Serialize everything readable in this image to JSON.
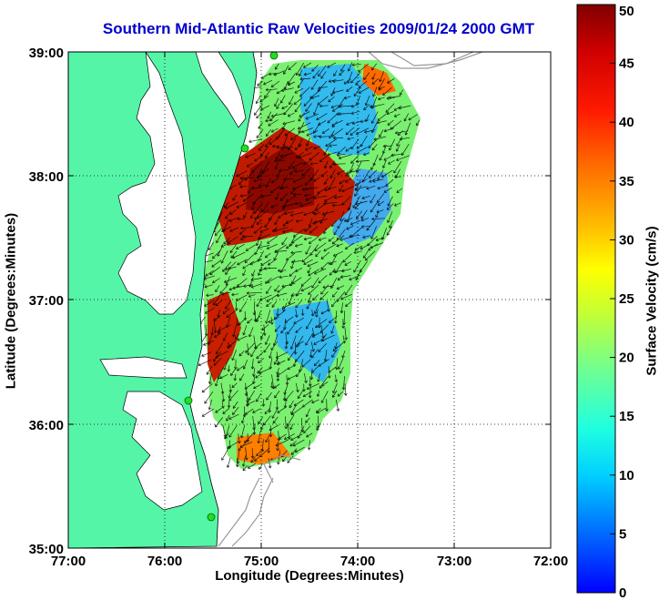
{
  "title": "Southern Mid-Atlantic Raw Velocities 2009/01/24 2000 GMT",
  "xlabel": "Longitude (Degrees:Minutes)",
  "ylabel": "Latitude (Degrees:Minutes)",
  "colorbar_label": "Surface Velocity (cm/s)",
  "x_ticks": [
    "77:00",
    "76:00",
    "75:00",
    "74:00",
    "73:00",
    "72:00"
  ],
  "y_ticks": [
    "39:00",
    "38:00",
    "37:00",
    "36:00",
    "35:00"
  ],
  "colorbar_ticks": [
    "0",
    "5",
    "10",
    "15",
    "20",
    "25",
    "30",
    "35",
    "40",
    "45",
    "50"
  ],
  "colors": {
    "land": "#55f5a8",
    "title": "#0000cc",
    "station": "#22dd22"
  },
  "map": {
    "lon_range": [
      -77,
      -72
    ],
    "lat_range": [
      35,
      39
    ],
    "colorbar_range": [
      0,
      50
    ],
    "grid": true
  }
}
